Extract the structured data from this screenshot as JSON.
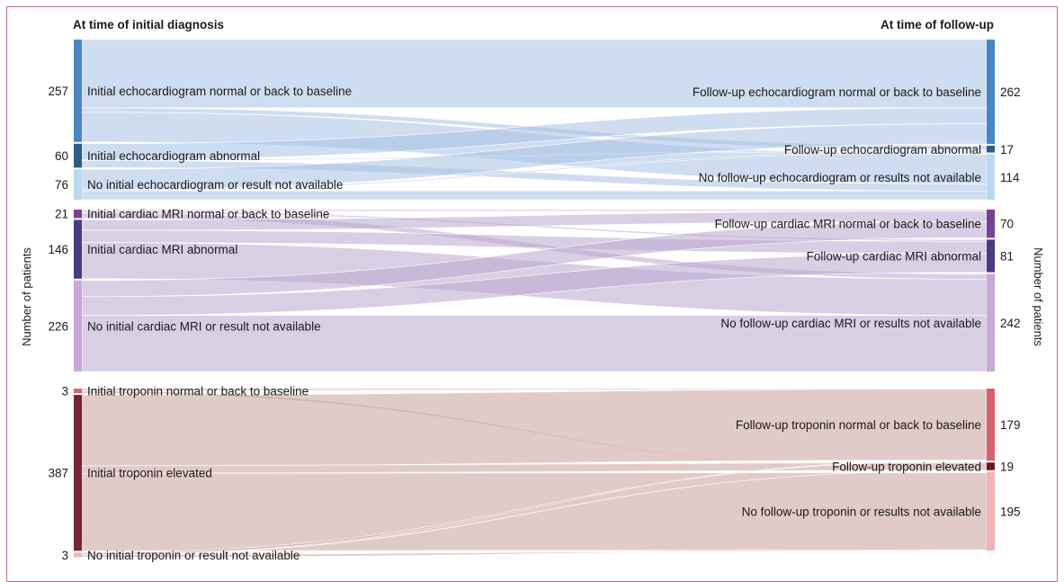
{
  "header_left": "At time of initial diagnosis",
  "header_right": "At time of follow-up",
  "axis_label_left": "Number of patients",
  "axis_label_right": "Number of patients",
  "groups": [
    {
      "id": "echo",
      "left_nodes": [
        {
          "label": "Initial echocardiogram normal or back to baseline",
          "count": "257",
          "color": "#4a86c6"
        },
        {
          "label": "Initial echocardiogram abnormal",
          "count": "60",
          "color": "#2a5b8e"
        },
        {
          "label": "No initial echocardiogram or result not available",
          "count": "76",
          "color": "#b9d9f0"
        }
      ],
      "right_nodes": [
        {
          "label": "Follow-up echocardiogram normal or back to baseline",
          "count": "262",
          "color": "#4a86c6"
        },
        {
          "label": "Follow-up echocardiogram abnormal",
          "count": "17",
          "color": "#2a5b8e"
        },
        {
          "label": "No follow-up echocardiogram or results not available",
          "count": "114",
          "color": "#b9d9f0"
        }
      ],
      "flow_color": "#a8c1e4"
    },
    {
      "id": "mri",
      "left_nodes": [
        {
          "label": "Initial cardiac MRI normal or back to baseline",
          "count": "21",
          "color": "#7b3f93"
        },
        {
          "label": "Initial cardiac MRI abnormal",
          "count": "146",
          "color": "#4b3b7e"
        },
        {
          "label": "No initial cardiac MRI or result not available",
          "count": "226",
          "color": "#c8a8d6"
        }
      ],
      "right_nodes": [
        {
          "label": "Follow-up cardiac MRI normal or back to baseline",
          "count": "70",
          "color": "#7b3f93"
        },
        {
          "label": "Follow-up cardiac MRI abnormal",
          "count": "81",
          "color": "#4b3b7e"
        },
        {
          "label": "No follow-up cardiac MRI or results not available",
          "count": "242",
          "color": "#c8a8d6"
        }
      ],
      "flow_color": "#b9a8cf"
    },
    {
      "id": "trop",
      "left_nodes": [
        {
          "label": "Initial troponin normal or back to baseline",
          "count": "3",
          "color": "#e0626b"
        },
        {
          "label": "Initial troponin elevated",
          "count": "387",
          "color": "#7a2430"
        },
        {
          "label": "No initial troponin or result not available",
          "count": "3",
          "color": "#f2b3b7"
        }
      ],
      "right_nodes": [
        {
          "label": "Follow-up troponin normal or back to baseline",
          "count": "179",
          "color": "#d2636a"
        },
        {
          "label": "Follow-up troponin elevated",
          "count": "19",
          "color": "#6a1a24"
        },
        {
          "label": "No follow-up troponin or results not available",
          "count": "195",
          "color": "#f2b3b7"
        }
      ],
      "flow_color": "#c9a09d"
    }
  ]
}
